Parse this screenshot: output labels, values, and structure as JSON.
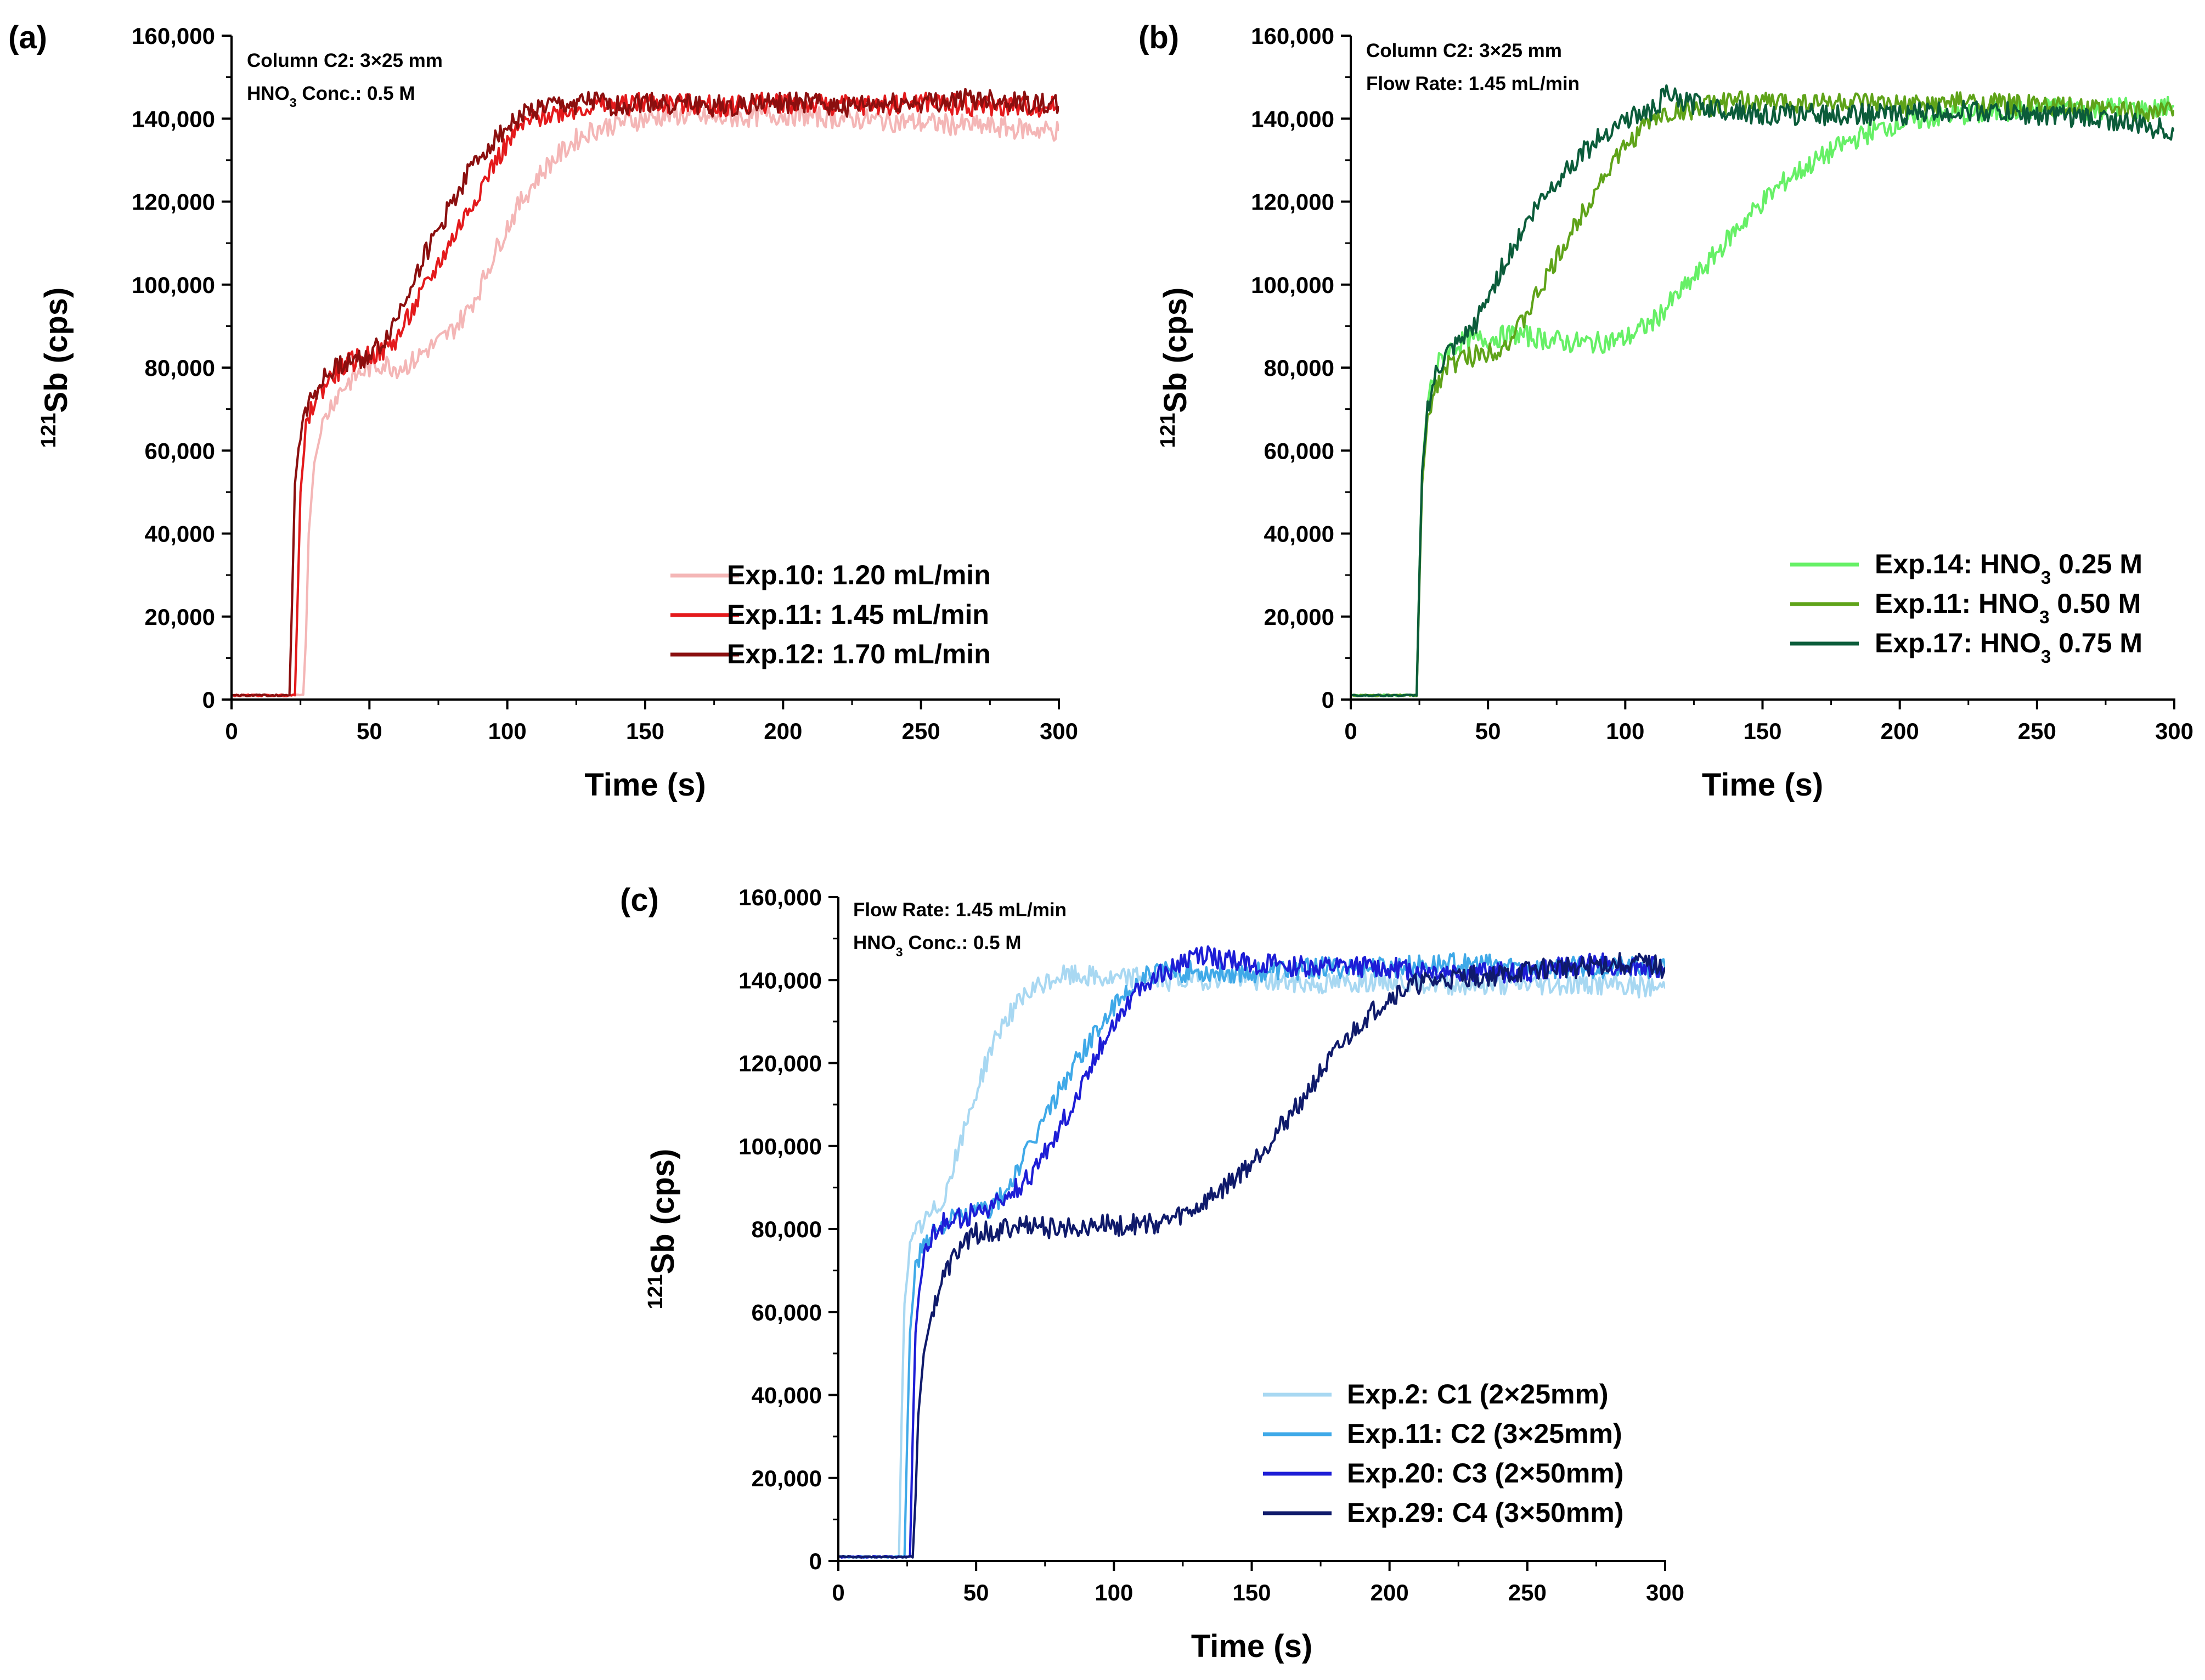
{
  "figure": {
    "colors": {
      "axis": "#000000",
      "background": "#ffffff"
    }
  },
  "panels": [
    {
      "tag": "(a)",
      "annotations": [
        {
          "parts": [
            {
              "t": "Column C2: 3×25 mm"
            }
          ]
        },
        {
          "parts": [
            {
              "t": "HNO"
            },
            {
              "t": "3",
              "sub": true
            },
            {
              "t": " Conc.: 0.5 M"
            }
          ]
        }
      ],
      "legend": [
        {
          "parts": [
            {
              "t": "Exp.10: 1.20 mL/min"
            }
          ]
        },
        {
          "parts": [
            {
              "t": "Exp.11: 1.45 mL/min"
            }
          ]
        },
        {
          "parts": [
            {
              "t": "Exp.12: 1.70 mL/min"
            }
          ]
        }
      ]
    },
    {
      "tag": "(b)",
      "annotations": [
        {
          "parts": [
            {
              "t": "Column C2: 3×25 mm"
            }
          ]
        },
        {
          "parts": [
            {
              "t": "Flow Rate: 1.45 mL/min"
            }
          ]
        }
      ],
      "legend": [
        {
          "parts": [
            {
              "t": "Exp.14: HNO"
            },
            {
              "t": "3",
              "sub": true
            },
            {
              "t": " 0.25 M"
            }
          ]
        },
        {
          "parts": [
            {
              "t": "Exp.11: HNO"
            },
            {
              "t": "3",
              "sub": true
            },
            {
              "t": " 0.50 M"
            }
          ]
        },
        {
          "parts": [
            {
              "t": "Exp.17: HNO"
            },
            {
              "t": "3",
              "sub": true
            },
            {
              "t": " 0.75 M"
            }
          ]
        }
      ]
    },
    {
      "tag": "(c)",
      "annotations": [
        {
          "parts": [
            {
              "t": "Flow Rate: 1.45 mL/min"
            }
          ]
        },
        {
          "parts": [
            {
              "t": "HNO"
            },
            {
              "t": "3",
              "sub": true
            },
            {
              "t": " Conc.: 0.5 M"
            }
          ]
        }
      ],
      "legend": [
        {
          "parts": [
            {
              "t": "Exp.2: C1 (2×25mm)"
            }
          ]
        },
        {
          "parts": [
            {
              "t": "Exp.11: C2 (3×25mm)"
            }
          ]
        },
        {
          "parts": [
            {
              "t": "Exp.20: C3 (2×50mm)"
            }
          ]
        },
        {
          "parts": [
            {
              "t": "Exp.29: C4 (3×50mm)"
            }
          ]
        }
      ]
    }
  ],
  "chart_data": [
    {
      "type": "line",
      "panel": "(a)",
      "title": "",
      "xlabel": "Time (s)",
      "ylabel": {
        "parts": [
          {
            "t": "121",
            "sup": true
          },
          {
            "t": "Sb (cps)"
          }
        ]
      },
      "xlim": [
        0,
        300
      ],
      "ylim": [
        0,
        160000
      ],
      "xticks": [
        0,
        50,
        100,
        150,
        200,
        250,
        300
      ],
      "xtick_labels": [
        "0",
        "50",
        "100",
        "150",
        "200",
        "250",
        "300"
      ],
      "yticks": [
        0,
        20000,
        40000,
        60000,
        80000,
        100000,
        120000,
        140000,
        160000
      ],
      "ytick_labels": [
        "0",
        "20,000",
        "40,000",
        "60,000",
        "80,000",
        "100,000",
        "120,000",
        "140,000",
        "160,000"
      ],
      "grid": false,
      "legend_position": "bottom-right",
      "series": [
        {
          "name": "Exp.10: 1.20 mL/min",
          "color": "#f4b6b6",
          "x": [
            0,
            26,
            27,
            28,
            30,
            33,
            36,
            40,
            45,
            50,
            55,
            60,
            65,
            70,
            75,
            80,
            85,
            90,
            95,
            100,
            105,
            110,
            115,
            120,
            125,
            130,
            140,
            150,
            160,
            175,
            200,
            225,
            250,
            275,
            300
          ],
          "y": [
            1000,
            1000,
            15000,
            40000,
            57000,
            66000,
            71000,
            75000,
            78000,
            80000,
            81000,
            80000,
            81000,
            84000,
            86000,
            89000,
            93000,
            99000,
            107000,
            114000,
            120000,
            125000,
            129000,
            132000,
            135000,
            137000,
            139000,
            140000,
            141000,
            140000,
            141000,
            140000,
            139000,
            138000,
            137000
          ]
        },
        {
          "name": "Exp.11: 1.45 mL/min",
          "color": "#e41a1c",
          "x": [
            0,
            23,
            24,
            25,
            27,
            30,
            35,
            40,
            45,
            50,
            55,
            60,
            65,
            70,
            75,
            80,
            85,
            90,
            95,
            100,
            105,
            110,
            115,
            120,
            130,
            140,
            150,
            175,
            200,
            225,
            250,
            275,
            300
          ],
          "y": [
            1000,
            1000,
            25000,
            50000,
            65000,
            72000,
            77000,
            80000,
            82000,
            83000,
            84000,
            87000,
            93000,
            99000,
            105000,
            111000,
            117000,
            123000,
            129000,
            134000,
            138000,
            140000,
            141000,
            142000,
            143000,
            143000,
            144000,
            143000,
            144000,
            143000,
            144000,
            143000,
            143000
          ]
        },
        {
          "name": "Exp.12: 1.70 mL/min",
          "color": "#8b0f0f",
          "x": [
            0,
            21,
            22,
            23,
            25,
            28,
            32,
            36,
            40,
            45,
            50,
            55,
            60,
            65,
            70,
            75,
            80,
            85,
            90,
            95,
            100,
            105,
            110,
            115,
            120,
            130,
            140,
            150,
            175,
            200,
            225,
            250,
            275,
            300
          ],
          "y": [
            1000,
            1000,
            25000,
            52000,
            65000,
            72000,
            76000,
            79000,
            81000,
            82000,
            83000,
            86000,
            92000,
            100000,
            107000,
            113000,
            120000,
            126000,
            131000,
            135000,
            138000,
            141000,
            142000,
            143000,
            143000,
            144000,
            143000,
            144000,
            143000,
            144000,
            143000,
            144000,
            145000,
            143000
          ]
        }
      ]
    },
    {
      "type": "line",
      "panel": "(b)",
      "title": "",
      "xlabel": "Time (s)",
      "ylabel": {
        "parts": [
          {
            "t": "121",
            "sup": true
          },
          {
            "t": "Sb (cps)"
          }
        ]
      },
      "xlim": [
        0,
        300
      ],
      "ylim": [
        0,
        160000
      ],
      "xticks": [
        0,
        50,
        100,
        150,
        200,
        250,
        300
      ],
      "xtick_labels": [
        "0",
        "50",
        "100",
        "150",
        "200",
        "250",
        "300"
      ],
      "yticks": [
        0,
        20000,
        40000,
        60000,
        80000,
        100000,
        120000,
        140000,
        160000
      ],
      "ytick_labels": [
        "0",
        "20,000",
        "40,000",
        "60,000",
        "80,000",
        "100,000",
        "120,000",
        "140,000",
        "160,000"
      ],
      "grid": false,
      "legend_position": "bottom-right",
      "series": [
        {
          "name": "Exp.14: HNO3 0.25 M",
          "color": "#66f066",
          "x": [
            0,
            24,
            25,
            26,
            28,
            31,
            35,
            40,
            50,
            60,
            70,
            80,
            90,
            100,
            110,
            120,
            130,
            140,
            150,
            160,
            170,
            180,
            190,
            200,
            210,
            220,
            230,
            240,
            250,
            260,
            270,
            280,
            290,
            300
          ],
          "y": [
            1000,
            1000,
            30000,
            55000,
            72000,
            80000,
            84000,
            86000,
            87000,
            88000,
            87000,
            86000,
            86000,
            87000,
            91000,
            98000,
            105000,
            113000,
            120000,
            126000,
            130000,
            134000,
            137000,
            139000,
            140000,
            141000,
            141000,
            142000,
            142000,
            143000,
            142000,
            143000,
            142000,
            143000
          ]
        },
        {
          "name": "Exp.11: HNO3 0.50 M",
          "color": "#5fa319",
          "x": [
            0,
            24,
            25,
            26,
            28,
            31,
            35,
            40,
            45,
            50,
            55,
            60,
            65,
            70,
            75,
            80,
            85,
            90,
            95,
            100,
            105,
            110,
            115,
            120,
            130,
            140,
            150,
            175,
            200,
            225,
            250,
            275,
            300
          ],
          "y": [
            1000,
            1000,
            28000,
            52000,
            68000,
            76000,
            80000,
            82000,
            83000,
            84000,
            85000,
            88000,
            94000,
            100000,
            106000,
            112000,
            118000,
            124000,
            129000,
            133000,
            137000,
            140000,
            141000,
            142000,
            143000,
            144000,
            144000,
            144000,
            143000,
            144000,
            143000,
            142000,
            142000
          ]
        },
        {
          "name": "Exp.17: HNO3 0.75 M",
          "color": "#0b5c3a",
          "x": [
            0,
            24,
            25,
            26,
            28,
            31,
            35,
            40,
            45,
            50,
            55,
            60,
            65,
            70,
            75,
            80,
            85,
            90,
            95,
            100,
            105,
            110,
            115,
            120,
            130,
            140,
            150,
            175,
            200,
            225,
            250,
            275,
            300
          ],
          "y": [
            1000,
            1000,
            30000,
            55000,
            70000,
            78000,
            83000,
            86000,
            90000,
            97000,
            104000,
            110000,
            116000,
            121000,
            125000,
            129000,
            132000,
            135000,
            138000,
            140000,
            141000,
            142000,
            146000,
            144000,
            143000,
            142000,
            141000,
            141000,
            141000,
            142000,
            141000,
            140000,
            137000
          ]
        }
      ]
    },
    {
      "type": "line",
      "panel": "(c)",
      "title": "",
      "xlabel": "Time (s)",
      "ylabel": {
        "parts": [
          {
            "t": "121",
            "sup": true
          },
          {
            "t": "Sb (cps)"
          }
        ]
      },
      "xlim": [
        0,
        300
      ],
      "ylim": [
        0,
        160000
      ],
      "xticks": [
        0,
        50,
        100,
        150,
        200,
        250,
        300
      ],
      "xtick_labels": [
        "0",
        "50",
        "100",
        "150",
        "200",
        "250",
        "300"
      ],
      "yticks": [
        0,
        20000,
        40000,
        60000,
        80000,
        100000,
        120000,
        140000,
        160000
      ],
      "ytick_labels": [
        "0",
        "20,000",
        "40,000",
        "60,000",
        "80,000",
        "100,000",
        "120,000",
        "140,000",
        "160,000"
      ],
      "grid": false,
      "legend_position": "bottom-right",
      "series": [
        {
          "name": "Exp.2: C1 (2×25mm)",
          "color": "#a8d8f2",
          "x": [
            0,
            22,
            23,
            24,
            26,
            29,
            33,
            37,
            40,
            45,
            50,
            55,
            60,
            65,
            70,
            75,
            80,
            90,
            100,
            110,
            120,
            130,
            140,
            150,
            175,
            200,
            225,
            250,
            275,
            300
          ],
          "y": [
            1000,
            1000,
            35000,
            62000,
            75000,
            80000,
            83000,
            86000,
            91000,
            102000,
            113000,
            123000,
            130000,
            134000,
            137000,
            139000,
            141000,
            141000,
            140000,
            141000,
            140000,
            140000,
            141000,
            140000,
            139000,
            140000,
            139000,
            139000,
            139000,
            138000
          ]
        },
        {
          "name": "Exp.11: C2 (3×25mm)",
          "color": "#3fa9e8",
          "x": [
            0,
            24,
            25,
            26,
            28,
            31,
            35,
            40,
            45,
            50,
            55,
            60,
            65,
            70,
            75,
            80,
            85,
            90,
            95,
            100,
            105,
            110,
            115,
            120,
            130,
            140,
            150,
            175,
            200,
            225,
            250,
            275,
            300
          ],
          "y": [
            1000,
            1000,
            30000,
            55000,
            70000,
            77000,
            80000,
            82000,
            83000,
            84000,
            85000,
            88000,
            94000,
            100000,
            107000,
            113000,
            119000,
            124000,
            129000,
            133000,
            137000,
            140000,
            142000,
            142000,
            142000,
            142000,
            142000,
            143000,
            143000,
            144000,
            143000,
            143000,
            143000
          ]
        },
        {
          "name": "Exp.20: C3 (2×50mm)",
          "color": "#1d1dd6",
          "x": [
            0,
            26,
            27,
            28,
            30,
            33,
            37,
            40,
            45,
            50,
            55,
            60,
            65,
            70,
            75,
            80,
            85,
            90,
            95,
            100,
            105,
            110,
            115,
            120,
            125,
            130,
            140,
            150,
            175,
            200,
            225,
            250,
            275,
            300
          ],
          "y": [
            1000,
            1000,
            30000,
            55000,
            70000,
            77000,
            81000,
            82000,
            83000,
            84000,
            85000,
            87000,
            90000,
            93000,
            98000,
            104000,
            110000,
            117000,
            124000,
            130000,
            135000,
            138000,
            141000,
            142000,
            144000,
            146000,
            145000,
            144000,
            143000,
            143000,
            142000,
            142000,
            144000,
            143000
          ]
        },
        {
          "name": "Exp.29: C4 (3×50mm)",
          "color": "#0f1a6b",
          "x": [
            0,
            27,
            28,
            29,
            31,
            34,
            38,
            42,
            46,
            50,
            60,
            70,
            80,
            90,
            100,
            110,
            120,
            130,
            140,
            150,
            160,
            170,
            180,
            190,
            200,
            210,
            220,
            230,
            240,
            250,
            260,
            270,
            280,
            290,
            300
          ],
          "y": [
            1000,
            1000,
            15000,
            35000,
            50000,
            60000,
            68000,
            73000,
            77000,
            79000,
            80000,
            81000,
            80000,
            81000,
            81000,
            81000,
            82000,
            85000,
            90000,
            96000,
            104000,
            113000,
            122000,
            130000,
            136000,
            139000,
            140000,
            141000,
            141000,
            142000,
            143000,
            143000,
            144000,
            144000,
            143000
          ]
        }
      ]
    }
  ]
}
